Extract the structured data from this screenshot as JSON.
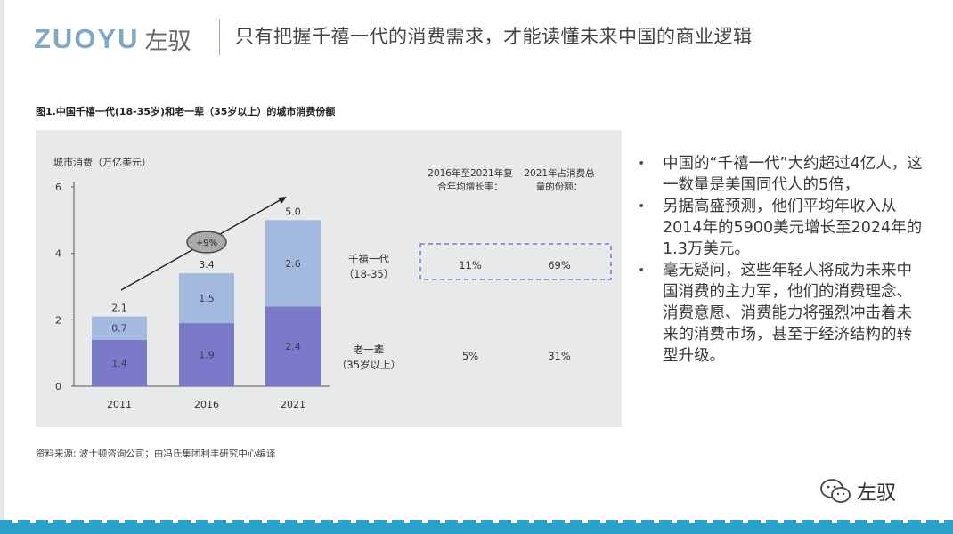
{
  "header": {
    "logo_en": "ZUOYU",
    "logo_cn": "左驭",
    "title": "只有把握千禧一代的消费需求，才能读懂未来中国的商业逻辑"
  },
  "figure": {
    "title": "图1.中国千禧一代(18-35岁)和老一辈（35岁以上）的城市消费份额",
    "source": "资料来源: 波士顿咨询公司；由冯氏集团利丰研究中心编译"
  },
  "chart_data": {
    "type": "bar",
    "stacked": true,
    "ylabel": "城市消费（万亿美元）",
    "ylim": [
      0,
      6
    ],
    "yticks": [
      "0",
      "2",
      "4",
      "6"
    ],
    "categories": [
      "2011",
      "2016",
      "2021"
    ],
    "series": [
      {
        "name": "老一辈（35岁以上）",
        "values": [
          1.4,
          1.9,
          2.4
        ],
        "color": "#7b79c9"
      },
      {
        "name": "千禧一代（18-35）",
        "values": [
          0.7,
          1.5,
          2.6
        ],
        "color": "#a4b9de"
      }
    ],
    "totals": [
      "2.1",
      "3.4",
      "5.0"
    ],
    "segment_labels": {
      "bottom": [
        "1.4",
        "1.9",
        "2.4"
      ],
      "top": [
        "0.7",
        "1.5",
        "2.6"
      ]
    },
    "growth_badge": "+9%",
    "table": {
      "headers": [
        "2016年至2021年复合年均增长率：",
        "2021年占消费总量的份额："
      ],
      "rows": [
        {
          "label_line1": "千禧一代",
          "label_line2": "（18-35）",
          "growth": "11%",
          "share": "69%"
        },
        {
          "label_line1": "老一辈",
          "label_line2": "（35岁以上）",
          "growth": "5%",
          "share": "31%"
        }
      ]
    }
  },
  "bullets": [
    "中国的“千禧一代”大约超过4亿人，这一数量是美国同代人的5倍，",
    "另据高盛预测，他们平均年收入从2014年的5900美元增长至2024年的1.3万美元。",
    "毫无疑问，这些年轻人将成为未来中国消费的主力军，他们的消费理念、消费意愿、消费能力将强烈冲击着未来的消费市场，甚至于经济结构的转型升级。"
  ],
  "watermark": {
    "label": "左驭",
    "icon": "wechat-icon"
  }
}
